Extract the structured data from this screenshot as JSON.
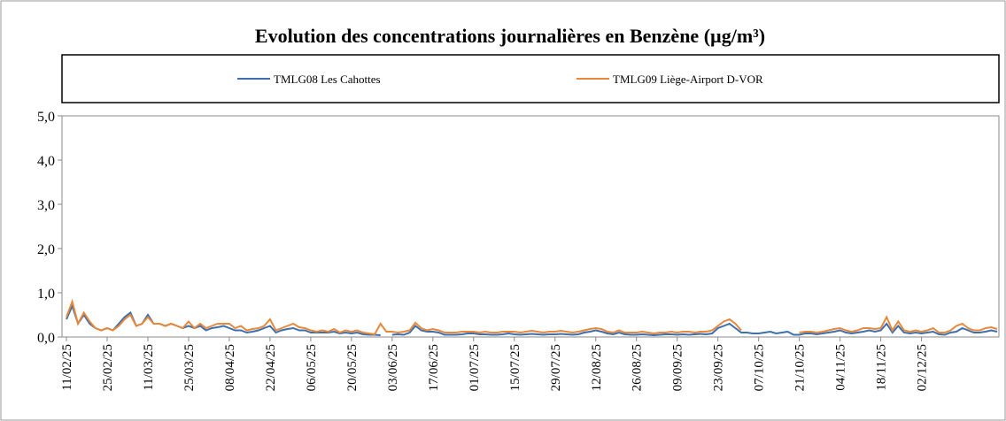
{
  "chart_data": {
    "type": "line",
    "title": "Evolution des concentrations journalières en Benzène (µg/m³)",
    "categories": [
      "11/02/25",
      null,
      null,
      null,
      null,
      null,
      null,
      "25/02/25",
      null,
      null,
      null,
      null,
      null,
      null,
      "11/03/25",
      null,
      null,
      null,
      null,
      null,
      null,
      "25/03/25",
      null,
      null,
      null,
      null,
      null,
      null,
      "08/04/25",
      null,
      null,
      null,
      null,
      null,
      null,
      "22/04/25",
      null,
      null,
      null,
      null,
      null,
      null,
      "06/05/25",
      null,
      null,
      null,
      null,
      null,
      null,
      "20/05/25",
      null,
      null,
      null,
      null,
      null,
      null,
      "03/06/25",
      null,
      null,
      null,
      null,
      null,
      null,
      "17/06/25",
      null,
      null,
      null,
      null,
      null,
      null,
      "01/07/25",
      null,
      null,
      null,
      null,
      null,
      null,
      "15/07/25",
      null,
      null,
      null,
      null,
      null,
      null,
      "29/07/25",
      null,
      null,
      null,
      null,
      null,
      null,
      "12/08/25",
      null,
      null,
      null,
      null,
      null,
      null,
      "26/08/25",
      null,
      null,
      null,
      null,
      null,
      null,
      "09/09/25",
      null,
      null,
      null,
      null,
      null,
      null,
      "23/09/25",
      null,
      null,
      null,
      null,
      null,
      null,
      "07/10/25",
      null,
      null,
      null,
      null,
      null,
      null,
      "21/10/25",
      null,
      null,
      null,
      null,
      null,
      null,
      "04/11/25",
      null,
      null,
      null,
      null,
      null,
      null,
      "18/11/25",
      null,
      null,
      null,
      null,
      null,
      null,
      "02/12/25",
      null,
      null,
      null,
      null,
      null,
      null,
      null,
      null,
      null,
      null,
      null,
      null,
      null
    ],
    "series": [
      {
        "name": "TMLG08 Les Cahottes",
        "color": "#3b6fae",
        "values": [
          0.4,
          0.7,
          0.3,
          0.5,
          0.3,
          0.2,
          0.15,
          0.2,
          0.15,
          0.3,
          0.45,
          0.55,
          0.25,
          0.3,
          0.5,
          0.3,
          0.3,
          0.25,
          0.3,
          0.25,
          0.2,
          0.25,
          0.2,
          0.25,
          0.15,
          0.2,
          0.22,
          0.25,
          0.2,
          0.15,
          0.15,
          0.1,
          0.12,
          0.15,
          0.2,
          0.25,
          0.1,
          0.15,
          0.18,
          0.2,
          0.15,
          0.15,
          0.1,
          0.1,
          0.1,
          0.1,
          0.12,
          0.08,
          0.1,
          0.08,
          0.1,
          0.06,
          0.05,
          0.05,
          0.04,
          null,
          0.05,
          0.06,
          0.05,
          0.1,
          0.25,
          0.15,
          0.12,
          0.12,
          0.1,
          0.05,
          0.05,
          0.05,
          0.06,
          0.08,
          0.08,
          0.06,
          0.06,
          0.05,
          0.05,
          0.06,
          0.08,
          0.06,
          0.05,
          0.06,
          0.07,
          0.06,
          0.05,
          0.06,
          0.06,
          0.07,
          0.06,
          0.05,
          0.06,
          0.1,
          0.12,
          0.15,
          0.12,
          0.08,
          0.06,
          0.1,
          0.06,
          0.05,
          0.05,
          0.06,
          0.05,
          0.04,
          0.05,
          0.06,
          0.06,
          0.05,
          0.06,
          0.05,
          0.06,
          0.07,
          0.06,
          0.08,
          0.2,
          0.25,
          0.3,
          0.2,
          0.1,
          0.1,
          0.08,
          0.08,
          0.1,
          0.12,
          0.08,
          0.1,
          0.12,
          0.05,
          0.05,
          0.08,
          0.08,
          0.06,
          0.08,
          0.1,
          0.12,
          0.15,
          0.1,
          0.08,
          0.1,
          0.12,
          0.15,
          0.12,
          0.15,
          0.3,
          0.1,
          0.25,
          0.1,
          0.08,
          0.1,
          0.08,
          0.1,
          0.12,
          0.06,
          0.05,
          0.1,
          0.12,
          0.2,
          0.15,
          0.1,
          0.1,
          0.12,
          0.15,
          0.12
        ]
      },
      {
        "name": "TMLG09 Liège-Airport D-VOR",
        "color": "#e8883a",
        "values": [
          0.45,
          0.8,
          0.3,
          0.55,
          0.35,
          0.2,
          0.15,
          0.2,
          0.15,
          0.25,
          0.4,
          0.5,
          0.25,
          0.3,
          0.45,
          0.3,
          0.3,
          0.25,
          0.3,
          0.25,
          0.2,
          0.35,
          0.2,
          0.3,
          0.2,
          0.25,
          0.3,
          0.3,
          0.3,
          0.2,
          0.25,
          0.15,
          0.18,
          0.2,
          0.25,
          0.4,
          0.15,
          0.2,
          0.25,
          0.3,
          0.22,
          0.2,
          0.15,
          0.12,
          0.15,
          0.12,
          0.18,
          0.1,
          0.15,
          0.12,
          0.15,
          0.1,
          0.08,
          0.06,
          0.3,
          0.12,
          0.12,
          0.1,
          0.12,
          0.15,
          0.32,
          0.2,
          0.15,
          0.18,
          0.15,
          0.1,
          0.1,
          0.1,
          0.12,
          0.12,
          0.12,
          0.1,
          0.12,
          0.1,
          0.1,
          0.12,
          0.12,
          0.12,
          0.1,
          0.12,
          0.14,
          0.12,
          0.1,
          0.12,
          0.12,
          0.14,
          0.12,
          0.1,
          0.12,
          0.15,
          0.18,
          0.2,
          0.18,
          0.12,
          0.1,
          0.15,
          0.1,
          0.1,
          0.1,
          0.12,
          0.1,
          0.08,
          0.1,
          0.1,
          0.12,
          0.1,
          0.12,
          0.12,
          0.1,
          0.12,
          0.12,
          0.15,
          0.25,
          0.35,
          0.4,
          0.3,
          0.15,
          null,
          null,
          null,
          null,
          null,
          null,
          null,
          null,
          null,
          0.1,
          0.12,
          0.12,
          0.1,
          0.12,
          0.15,
          0.18,
          0.2,
          0.15,
          0.12,
          0.15,
          0.2,
          0.2,
          0.18,
          0.2,
          0.45,
          0.15,
          0.35,
          0.15,
          0.12,
          0.15,
          0.12,
          0.15,
          0.2,
          0.1,
          0.1,
          0.15,
          0.25,
          0.3,
          0.2,
          0.15,
          0.15,
          0.2,
          0.22,
          0.18
        ]
      }
    ],
    "ylim": [
      0,
      5
    ],
    "yticks": [
      {
        "value": 0,
        "label": "0,0"
      },
      {
        "value": 1,
        "label": "1,0"
      },
      {
        "value": 2,
        "label": "2,0"
      },
      {
        "value": 3,
        "label": "3,0"
      },
      {
        "value": 4,
        "label": "4,0"
      },
      {
        "value": 5,
        "label": "5,0"
      }
    ]
  }
}
